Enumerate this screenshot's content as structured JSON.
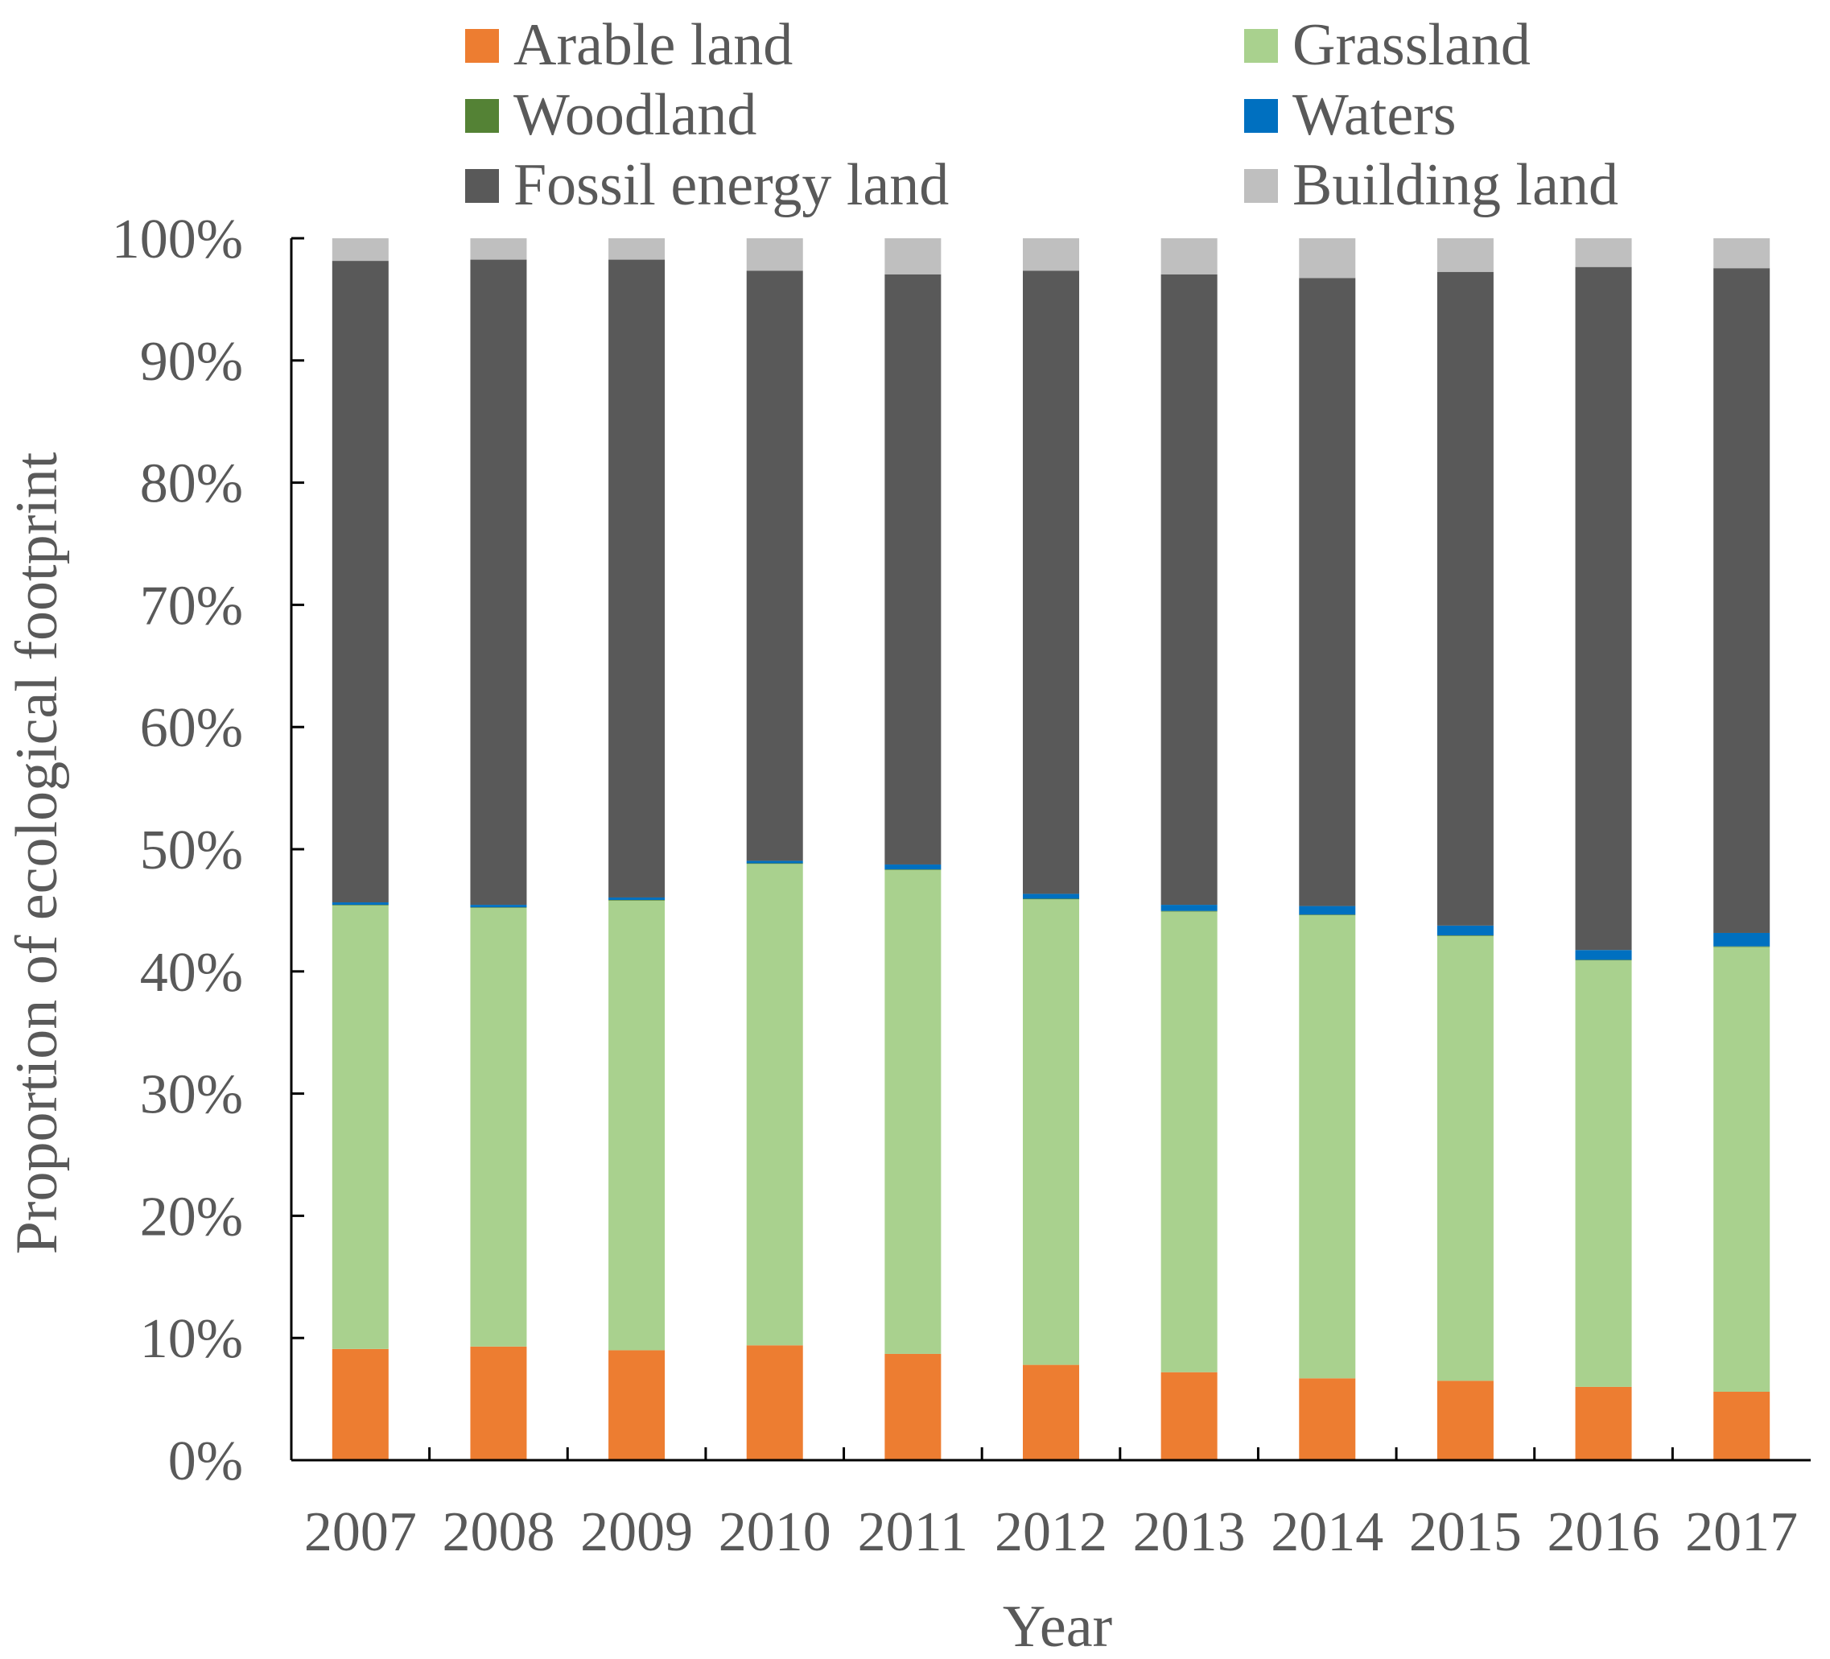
{
  "chart_data": {
    "type": "bar",
    "stacked": true,
    "title": "",
    "xlabel": "Year",
    "ylabel": "Proportion of ecological footprint",
    "ylim": [
      0,
      100
    ],
    "y_ticks": [
      "0%",
      "10%",
      "20%",
      "30%",
      "40%",
      "50%",
      "60%",
      "70%",
      "80%",
      "90%",
      "100%"
    ],
    "categories": [
      "2007",
      "2008",
      "2009",
      "2010",
      "2011",
      "2012",
      "2013",
      "2014",
      "2015",
      "2016",
      "2017"
    ],
    "legend_position": "top",
    "series": [
      {
        "name": "Arable land",
        "color": "#ed7d31",
        "values": [
          9.1,
          9.3,
          9.0,
          9.4,
          8.7,
          7.8,
          7.2,
          6.7,
          6.5,
          6.0,
          5.6
        ]
      },
      {
        "name": "Grassland",
        "color": "#a9d18e",
        "values": [
          36.3,
          35.9,
          36.8,
          39.4,
          39.6,
          38.1,
          37.7,
          37.9,
          36.4,
          34.9,
          36.4
        ]
      },
      {
        "name": "Woodland",
        "color": "#548235",
        "values": [
          0.05,
          0.05,
          0.05,
          0.05,
          0.05,
          0.05,
          0.05,
          0.05,
          0.05,
          0.05,
          0.05
        ]
      },
      {
        "name": "Waters",
        "color": "#0070c0",
        "values": [
          0.2,
          0.2,
          0.2,
          0.2,
          0.4,
          0.4,
          0.5,
          0.7,
          0.8,
          0.8,
          1.1
        ]
      },
      {
        "name": "Fossil energy land",
        "color": "#595959",
        "values": [
          52.5,
          52.8,
          52.2,
          48.3,
          48.3,
          51.0,
          51.6,
          51.4,
          53.5,
          55.9,
          54.4
        ]
      },
      {
        "name": "Building land",
        "color": "#bfbfbf",
        "values": [
          1.85,
          1.75,
          1.75,
          2.65,
          2.95,
          2.65,
          2.95,
          3.25,
          2.75,
          2.35,
          2.45
        ]
      }
    ]
  }
}
